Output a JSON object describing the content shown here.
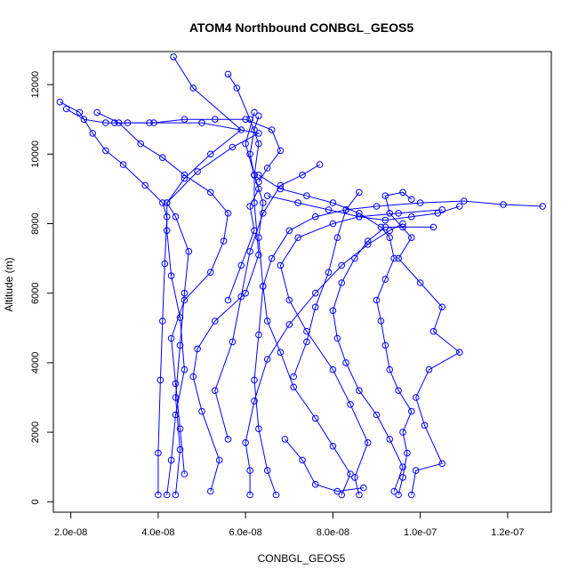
{
  "chart_data": {
    "type": "scatter",
    "title": "ATOM4 Northbound CONBGL_GEOS5",
    "xlabel": "CONBGL_GEOS5",
    "ylabel": "Altitude (m)",
    "xlim": [
      1.6e-08,
      1.3e-07
    ],
    "ylim": [
      -300,
      12950
    ],
    "x_ticks": [
      2e-08,
      4e-08,
      6e-08,
      8e-08,
      1e-07,
      1.2e-07
    ],
    "x_tick_labels": [
      "2.0e-08",
      "4.0e-08",
      "6.0e-08",
      "8.0e-08",
      "1.0e-07",
      "1.2e-07"
    ],
    "y_ticks": [
      0,
      2000,
      4000,
      6000,
      8000,
      10000,
      12000
    ],
    "y_tick_labels": [
      "0",
      "2000",
      "4000",
      "6000",
      "8000",
      "10000",
      "12000"
    ],
    "style": {
      "color": "#0000ff",
      "marker": "open-circle",
      "connect": "line"
    },
    "series": [
      {
        "points": [
          [
            4e-08,
            200
          ],
          [
            4e-08,
            1400
          ],
          [
            4.05e-08,
            3500
          ],
          [
            4.1e-08,
            5200
          ],
          [
            4.15e-08,
            6850
          ],
          [
            4.2e-08,
            8200
          ],
          [
            4.1e-08,
            8600
          ],
          [
            3.7e-08,
            9100
          ],
          [
            3.2e-08,
            9700
          ],
          [
            2.8e-08,
            10100
          ],
          [
            2.5e-08,
            10600
          ],
          [
            2.2e-08,
            11200
          ],
          [
            1.75e-08,
            11500
          ]
        ]
      },
      {
        "points": [
          [
            4.4e-08,
            200
          ],
          [
            4.5e-08,
            1500
          ],
          [
            4.4e-08,
            3000
          ],
          [
            4.5e-08,
            4500
          ],
          [
            4.6e-08,
            6000
          ],
          [
            4.7e-08,
            7200
          ],
          [
            4.4e-08,
            8200
          ],
          [
            4.2e-08,
            8600
          ],
          [
            4.6e-08,
            9300
          ],
          [
            5.2e-08,
            10000
          ],
          [
            5.9e-08,
            10700
          ],
          [
            4.8e-08,
            11900
          ],
          [
            4.35e-08,
            12800
          ]
        ]
      },
      {
        "points": [
          [
            5.2e-08,
            300
          ],
          [
            5.4e-08,
            1200
          ],
          [
            5e-08,
            2600
          ],
          [
            4.8e-08,
            3600
          ],
          [
            4.9e-08,
            4400
          ],
          [
            5.3e-08,
            5200
          ],
          [
            6e-08,
            6000
          ],
          [
            6.3e-08,
            7100
          ],
          [
            6.2e-08,
            8600
          ],
          [
            6.2e-08,
            9400
          ],
          [
            6.3e-08,
            10300
          ],
          [
            6.1e-08,
            11000
          ],
          [
            5.8e-08,
            11900
          ],
          [
            5.6e-08,
            12300
          ]
        ]
      },
      {
        "points": [
          [
            6.7e-08,
            200
          ],
          [
            6.5e-08,
            900
          ],
          [
            6.3e-08,
            2100
          ],
          [
            6.2e-08,
            3500
          ],
          [
            6.3e-08,
            4800
          ],
          [
            6.4e-08,
            6200
          ],
          [
            6.3e-08,
            7600
          ],
          [
            6.4e-08,
            8600
          ],
          [
            6.2e-08,
            9400
          ],
          [
            6e-08,
            10300
          ],
          [
            6.2e-08,
            11200
          ]
        ]
      },
      {
        "points": [
          [
            8.2e-08,
            200
          ],
          [
            8.4e-08,
            800
          ],
          [
            8e-08,
            1600
          ],
          [
            7.6e-08,
            2400
          ],
          [
            7.1e-08,
            3300
          ],
          [
            6.8e-08,
            4300
          ],
          [
            6.5e-08,
            5200
          ],
          [
            6.4e-08,
            6200
          ],
          [
            6.6e-08,
            7000
          ],
          [
            7e-08,
            7800
          ],
          [
            7.6e-08,
            8200
          ],
          [
            8.3e-08,
            8400
          ],
          [
            9e-08,
            8500
          ],
          [
            1e-07,
            8600
          ],
          [
            1.1e-07,
            8650
          ],
          [
            1.19e-07,
            8550
          ],
          [
            1.28e-07,
            8500
          ]
        ]
      },
      {
        "points": [
          [
            8.6e-08,
            200
          ],
          [
            8.5e-08,
            700
          ],
          [
            8.8e-08,
            1700
          ],
          [
            8.4e-08,
            2800
          ],
          [
            8e-08,
            3800
          ],
          [
            7.4e-08,
            4900
          ],
          [
            7e-08,
            5800
          ],
          [
            6.8e-08,
            6800
          ],
          [
            7.2e-08,
            7600
          ],
          [
            8e-08,
            8000
          ],
          [
            8.6e-08,
            8200
          ],
          [
            9.5e-08,
            8300
          ],
          [
            1.05e-07,
            8400
          ]
        ]
      },
      {
        "points": [
          [
            9.5e-08,
            200
          ],
          [
            9.6e-08,
            700
          ],
          [
            9.7e-08,
            1400
          ],
          [
            9.6e-08,
            2000
          ],
          [
            9.8e-08,
            2600
          ],
          [
            9.5e-08,
            3200
          ],
          [
            9.3e-08,
            3800
          ],
          [
            9.2e-08,
            4500
          ],
          [
            9.1e-08,
            5200
          ],
          [
            9e-08,
            5800
          ],
          [
            9.2e-08,
            6400
          ],
          [
            9.4e-08,
            7000
          ],
          [
            9.3e-08,
            7600
          ],
          [
            9.1e-08,
            7900
          ],
          [
            8.6e-08,
            8300
          ],
          [
            8e-08,
            8600
          ],
          [
            7.4e-08,
            8800
          ],
          [
            6.8e-08,
            9000
          ],
          [
            6.3e-08,
            9400
          ]
        ]
      },
      {
        "points": [
          [
            9.8e-08,
            200
          ],
          [
            9.9e-08,
            900
          ],
          [
            1.05e-07,
            1100
          ],
          [
            1.01e-07,
            2200
          ],
          [
            9.9e-08,
            3000
          ],
          [
            1.02e-07,
            3800
          ],
          [
            1.09e-07,
            4300
          ],
          [
            1.03e-07,
            4900
          ],
          [
            1.05e-07,
            5600
          ],
          [
            1e-07,
            6300
          ],
          [
            9.5e-08,
            7000
          ],
          [
            9.8e-08,
            7600
          ],
          [
            9.3e-08,
            8300
          ],
          [
            9.2e-08,
            8800
          ],
          [
            9.6e-08,
            8900
          ],
          [
            9.8e-08,
            8700
          ]
        ]
      },
      {
        "points": [
          [
            9.4e-08,
            300
          ],
          [
            9.6e-08,
            1000
          ],
          [
            9.3e-08,
            1800
          ],
          [
            9e-08,
            2500
          ],
          [
            8.6e-08,
            3200
          ],
          [
            8.3e-08,
            4000
          ],
          [
            8.1e-08,
            4700
          ],
          [
            8e-08,
            5500
          ],
          [
            8.2e-08,
            6300
          ],
          [
            8.5e-08,
            7000
          ],
          [
            8.8e-08,
            7500
          ],
          [
            9.2e-08,
            7900
          ],
          [
            9.6e-08,
            7900
          ],
          [
            1.03e-07,
            7900
          ]
        ]
      },
      {
        "points": [
          [
            4.2e-08,
            200
          ],
          [
            4.3e-08,
            1200
          ],
          [
            4.4e-08,
            2500
          ],
          [
            4.6e-08,
            3800
          ],
          [
            4.5e-08,
            5300
          ],
          [
            4.3e-08,
            6500
          ],
          [
            4.2e-08,
            7800
          ],
          [
            4.2e-08,
            8600
          ],
          [
            4.9e-08,
            9500
          ],
          [
            5.7e-08,
            10200
          ],
          [
            6.3e-08,
            10600
          ],
          [
            5e-08,
            10900
          ],
          [
            3.8e-08,
            10900
          ],
          [
            3e-08,
            10900
          ]
        ]
      },
      {
        "points": [
          [
            5.6e-08,
            1800
          ],
          [
            5.3e-08,
            3200
          ],
          [
            5.7e-08,
            4600
          ],
          [
            5.9e-08,
            5900
          ],
          [
            6.1e-08,
            7200
          ],
          [
            6.4e-08,
            8300
          ],
          [
            6.8e-08,
            9100
          ],
          [
            7.3e-08,
            9400
          ],
          [
            7.7e-08,
            9700
          ]
        ]
      },
      {
        "points": [
          [
            4.6e-08,
            800
          ],
          [
            4.5e-08,
            2100
          ],
          [
            4.4e-08,
            3400
          ],
          [
            4.3e-08,
            4700
          ],
          [
            4.6e-08,
            5800
          ],
          [
            5.2e-08,
            6600
          ],
          [
            5.5e-08,
            7500
          ],
          [
            5.6e-08,
            8300
          ],
          [
            5.2e-08,
            8900
          ],
          [
            4.6e-08,
            9400
          ],
          [
            4.1e-08,
            9900
          ],
          [
            3.6e-08,
            10300
          ],
          [
            3.1e-08,
            10900
          ],
          [
            2.6e-08,
            11200
          ]
        ]
      },
      {
        "points": [
          [
            6.1e-08,
            200
          ],
          [
            6.1e-08,
            900
          ],
          [
            6e-08,
            1700
          ],
          [
            6.2e-08,
            2900
          ],
          [
            6.5e-08,
            4100
          ],
          [
            7e-08,
            5100
          ],
          [
            7.6e-08,
            6000
          ],
          [
            8.2e-08,
            6800
          ],
          [
            8.8e-08,
            7400
          ],
          [
            9.3e-08,
            7800
          ],
          [
            9.6e-08,
            8000
          ]
        ]
      },
      {
        "points": [
          [
            6.9e-08,
            1800
          ],
          [
            7.3e-08,
            1200
          ],
          [
            7.6e-08,
            500
          ],
          [
            8.1e-08,
            300
          ],
          [
            8.7e-08,
            400
          ]
        ]
      },
      {
        "points": [
          [
            5.6e-08,
            5800
          ],
          [
            5.9e-08,
            6800
          ],
          [
            6.2e-08,
            7800
          ],
          [
            6.1e-08,
            8500
          ],
          [
            6.3e-08,
            9000
          ],
          [
            6.2e-08,
            9400
          ],
          [
            6.1e-08,
            10000
          ],
          [
            6.2e-08,
            10700
          ],
          [
            6.3e-08,
            11100
          ]
        ]
      },
      {
        "points": [
          [
            1.9e-08,
            11300
          ],
          [
            2.3e-08,
            11000
          ],
          [
            2.8e-08,
            10900
          ],
          [
            3.3e-08,
            10900
          ],
          [
            3.9e-08,
            10900
          ],
          [
            4.6e-08,
            11000
          ],
          [
            5.3e-08,
            11000
          ],
          [
            6e-08,
            11000
          ],
          [
            6.6e-08,
            10700
          ],
          [
            6.8e-08,
            10100
          ],
          [
            6.5e-08,
            9600
          ],
          [
            6.3e-08,
            9200
          ]
        ]
      },
      {
        "points": [
          [
            6.5e-08,
            8800
          ],
          [
            7.2e-08,
            8600
          ],
          [
            7.9e-08,
            8400
          ],
          [
            8.6e-08,
            8200
          ],
          [
            9.2e-08,
            8100
          ],
          [
            9.8e-08,
            8200
          ],
          [
            1.04e-07,
            8300
          ],
          [
            1.09e-07,
            8500
          ]
        ]
      },
      {
        "points": [
          [
            7.1e-08,
            3600
          ],
          [
            7.4e-08,
            4600
          ],
          [
            7.6e-08,
            5600
          ],
          [
            7.9e-08,
            6600
          ],
          [
            8.1e-08,
            7600
          ],
          [
            8.3e-08,
            8400
          ],
          [
            8.6e-08,
            8900
          ]
        ]
      }
    ]
  }
}
